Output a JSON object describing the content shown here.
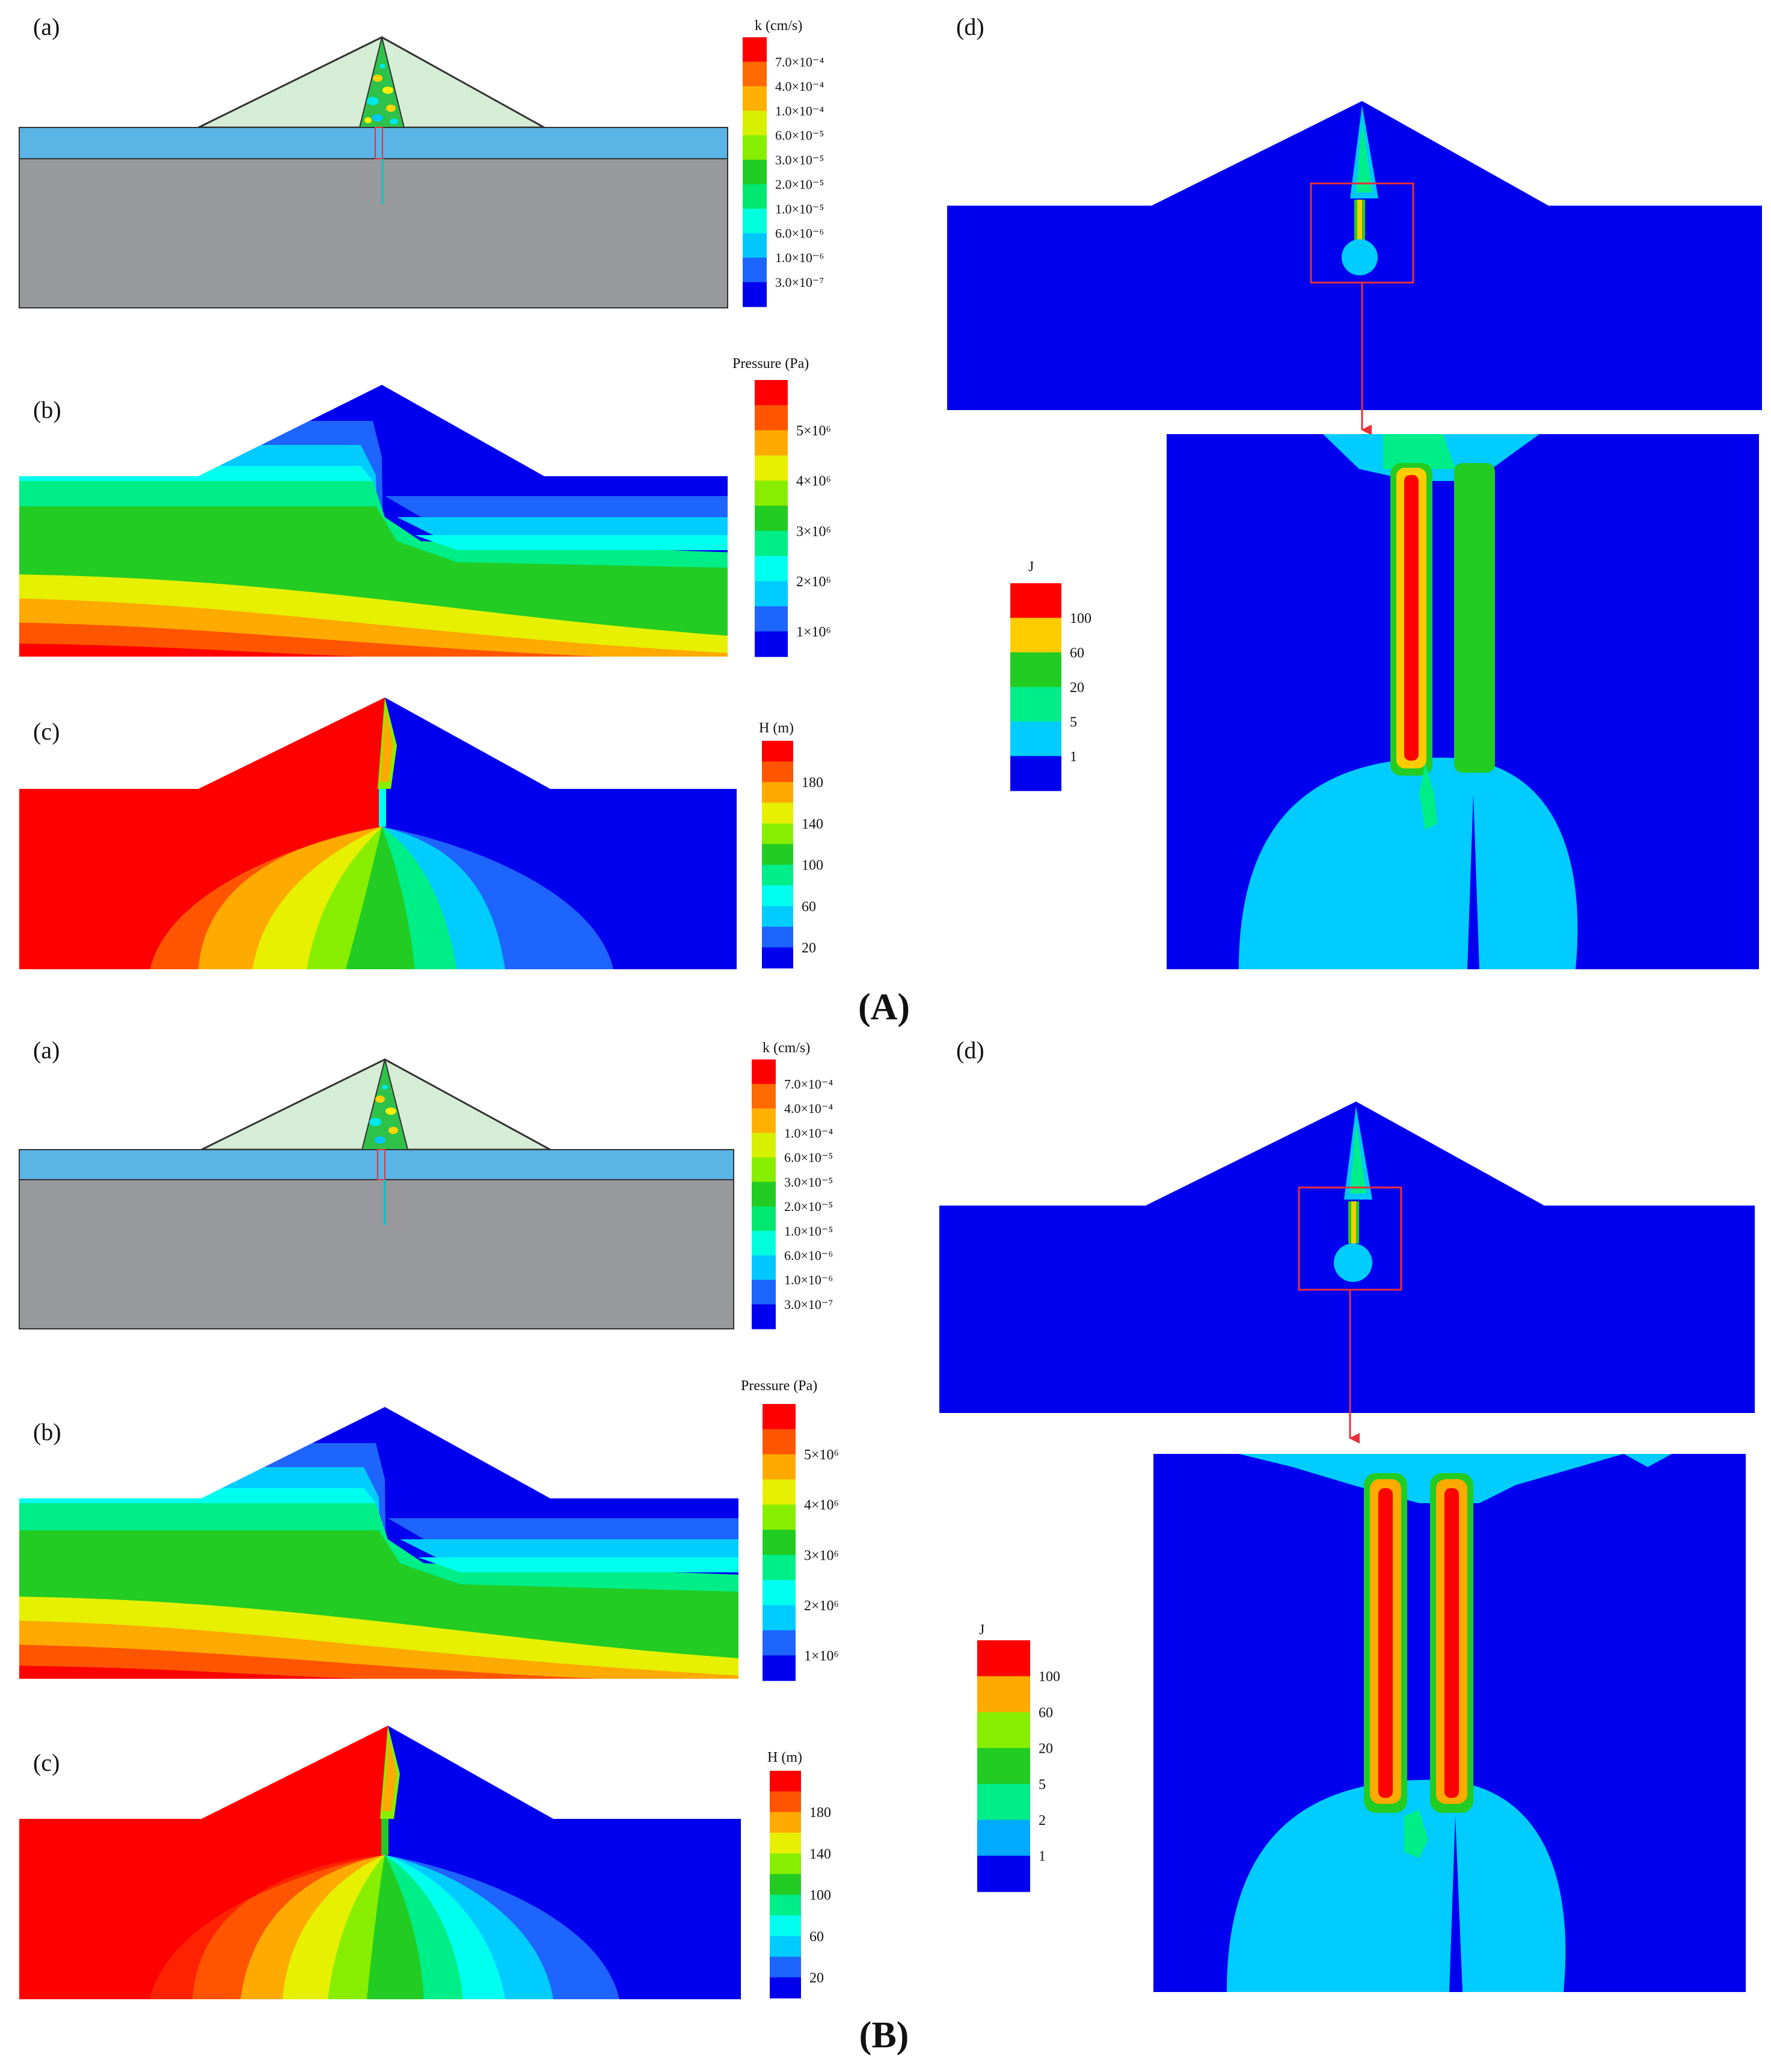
{
  "figure": {
    "panel_labels": {
      "a": "(a)",
      "b": "(b)",
      "c": "(c)",
      "d": "(d)"
    },
    "group_labels": [
      "(A)",
      "(B)"
    ]
  },
  "legends": {
    "k": {
      "title": "k (cm/s)",
      "ticks": [
        "7.0×10⁻⁴",
        "4.0×10⁻⁴",
        "1.0×10⁻⁴",
        "6.0×10⁻⁵",
        "3.0×10⁻⁵",
        "2.0×10⁻⁵",
        "1.0×10⁻⁵",
        "6.0×10⁻⁶",
        "1.0×10⁻⁶",
        "3.0×10⁻⁷"
      ],
      "colors": [
        "#ff0000",
        "#ff6a00",
        "#ffb000",
        "#d6f000",
        "#88ee00",
        "#22cc22",
        "#00e870",
        "#00ffdd",
        "#00c8ff",
        "#1e64ff",
        "#0000ee"
      ]
    },
    "pressure": {
      "title": "Pressure (Pa)",
      "ticks": [
        "5×10⁶",
        "4×10⁶",
        "3×10⁶",
        "2×10⁶",
        "1×10⁶"
      ],
      "colors": [
        "#ff0000",
        "#ff5500",
        "#ffaa00",
        "#e6f000",
        "#88ee00",
        "#22cc22",
        "#00ee88",
        "#00ffee",
        "#00ccff",
        "#1e64ff",
        "#0000ee"
      ]
    },
    "head": {
      "title": "H (m)",
      "ticks": [
        "180",
        "140",
        "100",
        "60",
        "20"
      ],
      "colors": [
        "#ff0000",
        "#ff5500",
        "#ffaa00",
        "#e6f000",
        "#88ee00",
        "#22cc22",
        "#00ee88",
        "#00ffee",
        "#00ccff",
        "#1e64ff",
        "#0000ee"
      ]
    },
    "gradient_A": {
      "title": "J",
      "ticks": [
        "100",
        "60",
        "20",
        "5",
        "1"
      ],
      "colors": [
        "#ff0000",
        "#ffcc00",
        "#22cc22",
        "#00ee88",
        "#00ccff",
        "#0000ee"
      ]
    },
    "gradient_B": {
      "title": "J",
      "ticks": [
        "100",
        "60",
        "20",
        "5",
        "2",
        "1"
      ],
      "colors": [
        "#ff0000",
        "#ffaa00",
        "#88ee00",
        "#22cc22",
        "#00ee88",
        "#00aaff",
        "#0000ee"
      ]
    }
  },
  "colors": {
    "shell": "#d5ecd5",
    "foundation_top": "#5ab4e6",
    "foundation_rock": "#97999c",
    "field_blue": "#0000ee",
    "field_red": "#ff0000",
    "zoom_box": "#e8303a"
  }
}
